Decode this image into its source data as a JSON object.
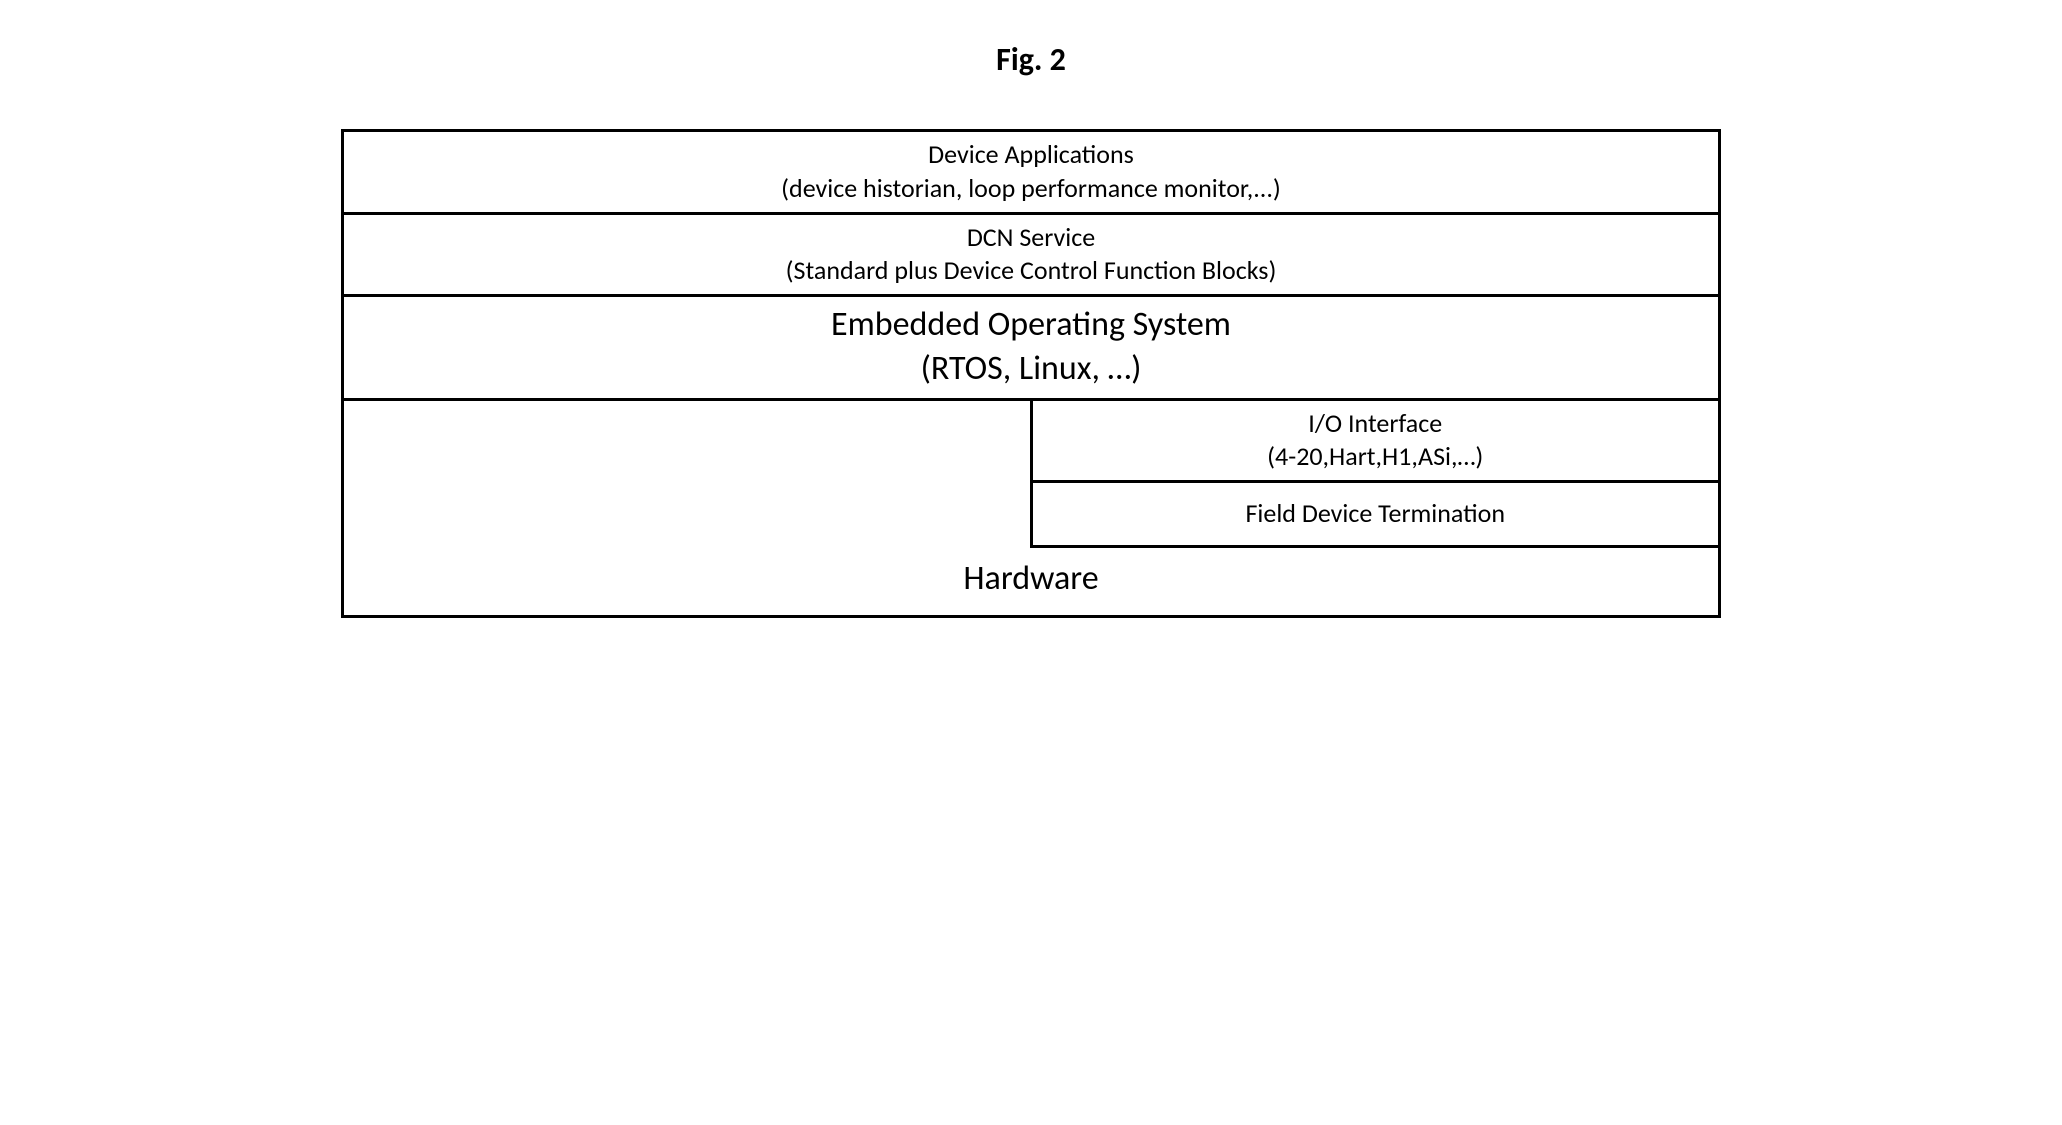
{
  "figure": {
    "title": "Fig. 2"
  },
  "diagram": {
    "type": "layered-architecture",
    "border_color": "#000000",
    "border_width": 3,
    "background_color": "#ffffff",
    "text_color": "#000000",
    "font_family": "Calibri",
    "layers": [
      {
        "id": "device-apps",
        "title": "Device Applications",
        "subtitle": "(device historian, loop performance monitor,...)",
        "fontsize": 26
      },
      {
        "id": "dcn-service",
        "title": "DCN Service",
        "subtitle": "(Standard plus Device Control Function Blocks)",
        "fontsize": 26
      },
      {
        "id": "embedded-os",
        "title": "Embedded Operating System",
        "subtitle": "(RTOS, Linux, …)",
        "fontsize": 34
      }
    ],
    "hardware_section": {
      "io_interface": {
        "title": "I/O Interface",
        "subtitle": "(4-20,Hart,H1,ASi,…)",
        "fontsize": 26
      },
      "field_device": {
        "title": "Field Device Termination",
        "fontsize": 26
      },
      "hardware_label": {
        "title": "Hardware",
        "fontsize": 34
      }
    }
  }
}
